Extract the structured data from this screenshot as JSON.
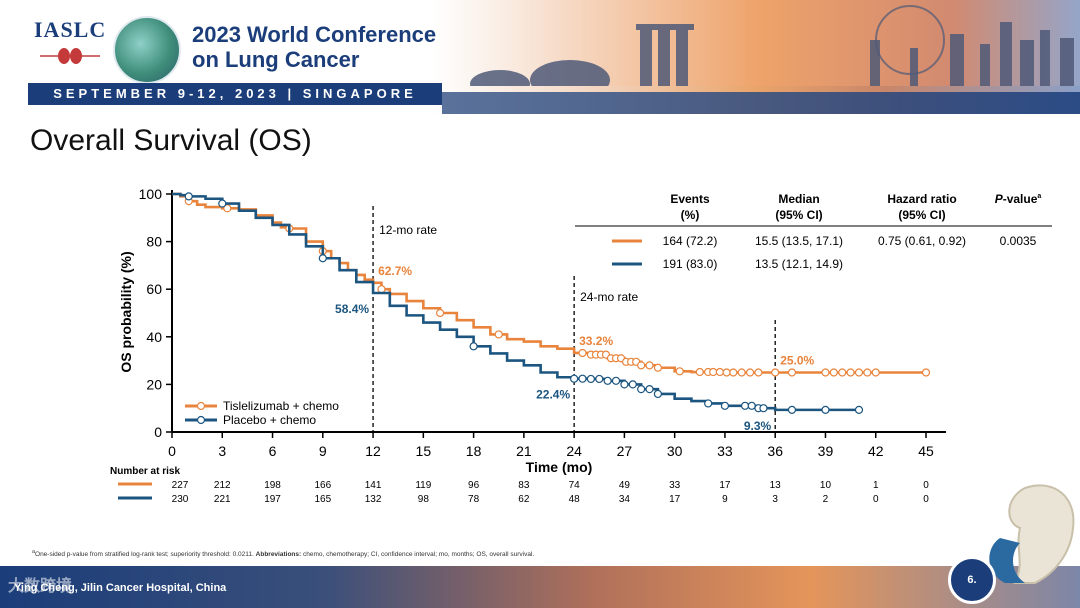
{
  "header": {
    "org": "IASLC",
    "conference_title_line1": "2023 World Conference",
    "conference_title_line2": "on Lung Cancer",
    "date_location": "SEPTEMBER 9-12, 2023 | SINGAPORE"
  },
  "slide": {
    "title": "Overall Survival (OS)",
    "page_number": "6.",
    "author": "Ying Cheng, Jilin Cancer Hospital, China",
    "watermark": "大数跨境"
  },
  "footnote": {
    "marker": "a",
    "text": "One-sided p-value from stratified log-rank test; superiority threshold: 0.0211. ",
    "abbrev_label": "Abbreviations:",
    "abbrev_text": " chemo, chemotherapy; CI, confidence interval; mo, months; OS, overall survival."
  },
  "colors": {
    "tislelizumab": "#e8843c",
    "placebo": "#1b5580",
    "axis": "#000000",
    "brand": "#1b3d7a"
  },
  "chart_data": {
    "type": "line",
    "subtype": "kaplan-meier",
    "xlabel": "Time (mo)",
    "ylabel": "OS probability (%)",
    "xlim": [
      0,
      45
    ],
    "ylim": [
      0,
      100
    ],
    "xticks": [
      0,
      3,
      6,
      9,
      12,
      15,
      18,
      21,
      24,
      27,
      30,
      33,
      36,
      39,
      42,
      45
    ],
    "yticks": [
      0,
      20,
      40,
      60,
      80,
      100
    ],
    "legend": {
      "placement": "bottom-left"
    },
    "series": [
      {
        "name": "Tislelizumab + chemo",
        "color": "#e8843c",
        "points": [
          [
            0,
            100
          ],
          [
            0.5,
            99
          ],
          [
            1,
            97
          ],
          [
            1.5,
            95.5
          ],
          [
            2,
            94.5
          ],
          [
            3,
            94
          ],
          [
            4,
            93.5
          ],
          [
            5,
            91
          ],
          [
            6,
            88
          ],
          [
            6.5,
            86
          ],
          [
            7,
            85.5
          ],
          [
            8,
            80
          ],
          [
            9,
            76
          ],
          [
            9.5,
            73
          ],
          [
            10,
            71
          ],
          [
            10.5,
            68
          ],
          [
            11,
            66
          ],
          [
            11.5,
            64
          ],
          [
            12,
            62.7
          ],
          [
            12.5,
            60
          ],
          [
            13,
            58
          ],
          [
            14,
            55
          ],
          [
            15,
            52
          ],
          [
            16,
            50
          ],
          [
            17,
            47
          ],
          [
            18,
            44
          ],
          [
            19,
            41
          ],
          [
            20,
            39
          ],
          [
            21,
            38
          ],
          [
            22,
            36
          ],
          [
            23,
            35
          ],
          [
            24,
            33.2
          ],
          [
            25,
            32.5
          ],
          [
            26,
            31
          ],
          [
            27,
            29.5
          ],
          [
            28,
            28
          ],
          [
            29,
            27
          ],
          [
            30,
            25.5
          ],
          [
            31,
            25.2
          ],
          [
            33,
            25
          ],
          [
            36,
            25
          ],
          [
            39,
            25
          ],
          [
            42,
            25
          ],
          [
            45,
            25
          ]
        ],
        "censor_x": [
          1,
          3.3,
          7,
          9,
          12.5,
          16,
          19.5,
          24.5,
          25,
          25.3,
          25.6,
          25.9,
          26.2,
          26.5,
          26.8,
          27.1,
          27.4,
          27.7,
          28,
          28.5,
          29,
          30.3,
          31.5,
          32,
          32.3,
          32.7,
          33.1,
          33.5,
          34,
          34.5,
          35,
          36,
          37,
          39,
          39.5,
          40,
          40.5,
          41,
          41.5,
          42,
          45
        ],
        "milestones": [
          {
            "label": "62.7%",
            "x": 12,
            "y": 62.7
          },
          {
            "label": "33.2%",
            "x": 24,
            "y": 33.2
          },
          {
            "label": "25.0%",
            "x": 36,
            "y": 25.0
          }
        ],
        "at_risk": [
          227,
          212,
          198,
          166,
          141,
          119,
          96,
          83,
          74,
          49,
          33,
          17,
          13,
          10,
          1,
          0
        ],
        "table": {
          "events": "164 (72.2)",
          "median": "15.5 (13.5, 17.1)",
          "hr": "0.75 (0.61, 0.92)",
          "p": "0.0035"
        }
      },
      {
        "name": "Placebo + chemo",
        "color": "#1b5580",
        "points": [
          [
            0,
            100
          ],
          [
            0.5,
            99.5
          ],
          [
            1,
            99
          ],
          [
            2,
            98
          ],
          [
            3,
            96
          ],
          [
            4,
            93
          ],
          [
            5,
            90
          ],
          [
            6,
            87
          ],
          [
            7,
            83
          ],
          [
            8,
            78
          ],
          [
            9,
            73
          ],
          [
            10,
            68
          ],
          [
            11,
            63
          ],
          [
            12,
            58.4
          ],
          [
            13,
            53
          ],
          [
            14,
            49
          ],
          [
            15,
            46
          ],
          [
            16,
            43
          ],
          [
            17,
            40
          ],
          [
            18,
            36
          ],
          [
            19,
            33
          ],
          [
            20,
            30
          ],
          [
            21,
            28
          ],
          [
            22,
            25
          ],
          [
            23,
            23
          ],
          [
            24,
            22.4
          ],
          [
            25,
            22.3
          ],
          [
            26,
            21.5
          ],
          [
            27,
            20
          ],
          [
            28,
            18
          ],
          [
            29,
            16
          ],
          [
            30,
            14
          ],
          [
            31,
            13
          ],
          [
            32,
            12
          ],
          [
            33,
            11
          ],
          [
            34,
            11
          ],
          [
            35,
            10
          ],
          [
            36,
            9.3
          ],
          [
            38,
            9.3
          ],
          [
            40,
            9.3
          ],
          [
            41,
            9.3
          ]
        ],
        "censor_x": [
          1,
          3,
          9,
          18,
          24,
          24.5,
          25,
          25.5,
          26,
          26.5,
          27,
          27.5,
          28,
          28.5,
          29,
          32,
          33,
          34.2,
          34.6,
          35,
          35.3,
          37,
          39,
          41
        ],
        "milestones": [
          {
            "label": "58.4%",
            "x": 12,
            "y": 58.4
          },
          {
            "label": "22.4%",
            "x": 24,
            "y": 22.4
          },
          {
            "label": "9.3%",
            "x": 36,
            "y": 9.3
          }
        ],
        "at_risk": [
          230,
          221,
          197,
          165,
          132,
          98,
          78,
          62,
          48,
          34,
          17,
          9,
          3,
          2,
          0,
          0
        ],
        "table": {
          "events": "191 (83.0)",
          "median": "13.5 (12.1, 14.9)"
        }
      }
    ],
    "annotations": [
      {
        "label": "12-mo rate",
        "x": 12
      },
      {
        "label": "24-mo rate",
        "x": 24
      }
    ],
    "stats_table": {
      "headers": {
        "events": [
          "Events",
          "(%)"
        ],
        "median": [
          "Median",
          "(95% CI)"
        ],
        "hr": [
          "Hazard ratio",
          "(95% CI)"
        ],
        "p_italic": "P",
        "p_rest": "-value",
        "p_sup": "a"
      }
    },
    "at_risk_title": "Number at risk"
  }
}
